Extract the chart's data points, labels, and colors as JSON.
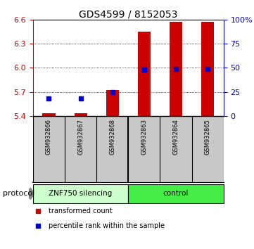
{
  "title": "GDS4599 / 8152053",
  "samples": [
    "GSM932866",
    "GSM932867",
    "GSM932868",
    "GSM932863",
    "GSM932864",
    "GSM932865"
  ],
  "group_labels": [
    "ZNF750 silencing",
    "control"
  ],
  "group_split": 3,
  "ylim_left": [
    5.4,
    6.6
  ],
  "ylim_right": [
    0,
    100
  ],
  "yticks_left": [
    5.4,
    5.7,
    6.0,
    6.3,
    6.6
  ],
  "yticks_right": [
    0,
    25,
    50,
    75,
    100
  ],
  "bar_base": 5.4,
  "bar_tops": [
    5.43,
    5.43,
    5.72,
    6.45,
    6.58,
    6.58
  ],
  "percentile_values": [
    18,
    18,
    25,
    48,
    49,
    49
  ],
  "bar_color": "#cc0000",
  "percentile_color": "#0000cc",
  "bar_width": 0.4,
  "marker_size": 5,
  "left_axis_color": "#cc0000",
  "right_axis_color": "#0000cc",
  "grid_yticks": [
    5.7,
    6.0,
    6.3
  ],
  "protocol_text": "protocol",
  "legend_items": [
    "transformed count",
    "percentile rank within the sample"
  ],
  "legend_colors": [
    "#cc0000",
    "#0000cc"
  ],
  "bg_color": "#ffffff",
  "plot_bg": "#ffffff",
  "label_area_color": "#c8c8c8",
  "silencing_color": "#ccffcc",
  "control_color": "#44ee44",
  "title_fontsize": 10,
  "tick_fontsize": 8,
  "sample_fontsize": 6,
  "legend_fontsize": 7,
  "protocol_fontsize": 8
}
